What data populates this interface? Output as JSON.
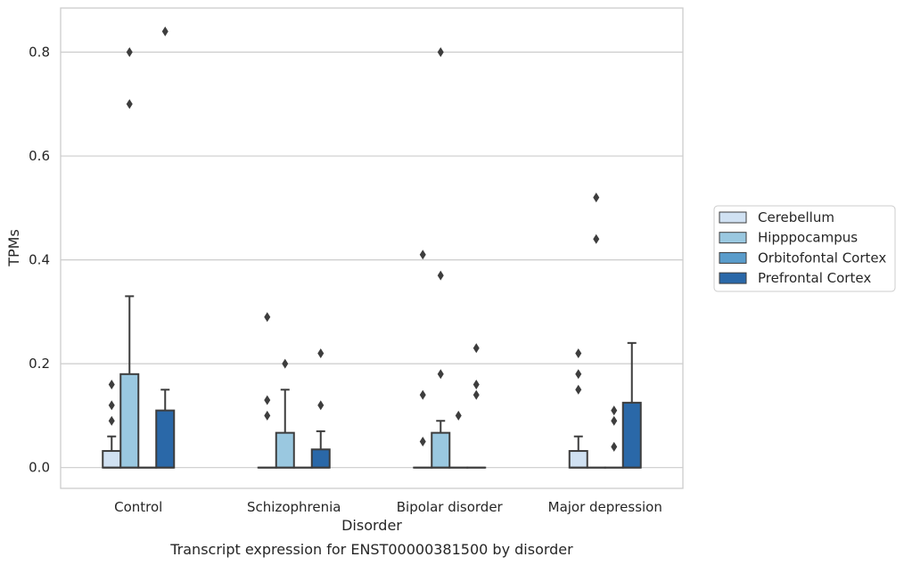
{
  "chart_data": {
    "type": "box",
    "caption": "Transcript expression for ENST00000381500 by disorder",
    "xlabel": "Disorder",
    "ylabel": "TPMs",
    "ylim": [
      -0.04,
      0.885
    ],
    "yticks": [
      0.0,
      0.2,
      0.4,
      0.6,
      0.8
    ],
    "ytick_labels": [
      "0.0",
      "0.2",
      "0.4",
      "0.6",
      "0.8"
    ],
    "grid": "horizontal",
    "legend_position": "right",
    "categories": [
      "Control",
      "Schizophrenia",
      "Bipolar disorder",
      "Major depression"
    ],
    "series": [
      {
        "name": "Cerebellum",
        "color": "#d0e1f2",
        "boxes": [
          {
            "q1": 0,
            "median": 0,
            "q3": 0.032,
            "whisker_low": 0,
            "whisker_high": 0.06,
            "outliers": [
              0.09,
              0.12,
              0.16
            ]
          },
          {
            "q1": 0,
            "median": 0,
            "q3": 0,
            "whisker_low": 0,
            "whisker_high": 0,
            "outliers": [
              0.1,
              0.13,
              0.29
            ]
          },
          {
            "q1": 0,
            "median": 0,
            "q3": 0,
            "whisker_low": 0,
            "whisker_high": 0,
            "outliers": [
              0.05,
              0.14,
              0.41
            ]
          },
          {
            "q1": 0,
            "median": 0,
            "q3": 0.032,
            "whisker_low": 0,
            "whisker_high": 0.06,
            "outliers": [
              0.15,
              0.18,
              0.22
            ]
          }
        ]
      },
      {
        "name": "Hipppocampus",
        "color": "#9ac8e0",
        "boxes": [
          {
            "q1": 0,
            "median": 0,
            "q3": 0.18,
            "whisker_low": 0,
            "whisker_high": 0.33,
            "outliers": [
              0.7,
              0.8
            ]
          },
          {
            "q1": 0,
            "median": 0,
            "q3": 0.067,
            "whisker_low": 0,
            "whisker_high": 0.15,
            "outliers": [
              0.2
            ]
          },
          {
            "q1": 0,
            "median": 0,
            "q3": 0.067,
            "whisker_low": 0,
            "whisker_high": 0.09,
            "outliers": [
              0.18,
              0.37,
              0.8
            ]
          },
          {
            "q1": 0,
            "median": 0,
            "q3": 0,
            "whisker_low": 0,
            "whisker_high": 0,
            "outliers": [
              0.44,
              0.52
            ]
          }
        ]
      },
      {
        "name": "Orbitofontal Cortex",
        "color": "#5a9ccb",
        "boxes": [
          {
            "q1": 0,
            "median": 0,
            "q3": 0,
            "whisker_low": 0,
            "whisker_high": 0,
            "outliers": []
          },
          {
            "q1": 0,
            "median": 0,
            "q3": 0,
            "whisker_low": 0,
            "whisker_high": 0,
            "outliers": []
          },
          {
            "q1": 0,
            "median": 0,
            "q3": 0,
            "whisker_low": 0,
            "whisker_high": 0,
            "outliers": [
              0.1
            ]
          },
          {
            "q1": 0,
            "median": 0,
            "q3": 0,
            "whisker_low": 0,
            "whisker_high": 0,
            "outliers": [
              0.04,
              0.09,
              0.11
            ]
          }
        ]
      },
      {
        "name": "Prefrontal Cortex",
        "color": "#2a68a8",
        "boxes": [
          {
            "q1": 0,
            "median": 0,
            "q3": 0.11,
            "whisker_low": 0,
            "whisker_high": 0.15,
            "outliers": [
              0.84
            ]
          },
          {
            "q1": 0,
            "median": 0,
            "q3": 0.035,
            "whisker_low": 0,
            "whisker_high": 0.07,
            "outliers": [
              0.12,
              0.22
            ]
          },
          {
            "q1": 0,
            "median": 0,
            "q3": 0,
            "whisker_low": 0,
            "whisker_high": 0,
            "outliers": [
              0.14,
              0.16,
              0.23
            ]
          },
          {
            "q1": 0,
            "median": 0,
            "q3": 0.125,
            "whisker_low": 0,
            "whisker_high": 0.24,
            "outliers": []
          }
        ]
      }
    ]
  }
}
